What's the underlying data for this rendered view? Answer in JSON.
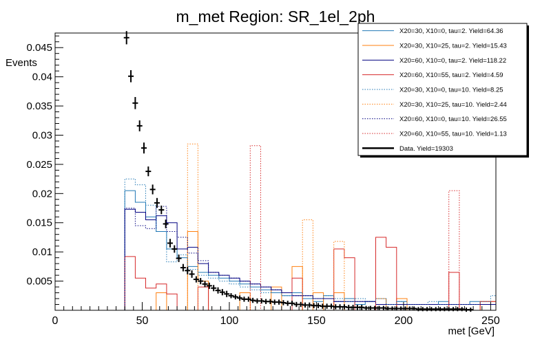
{
  "chart_data": {
    "type": "histogram",
    "title": "m_met Region: SR_1el_2ph",
    "xlabel": "met [GeV]",
    "ylabel": "Events",
    "xlim": [
      0,
      253
    ],
    "ylim": [
      0,
      0.0475
    ],
    "x_ticks": [
      0,
      50,
      100,
      150,
      200,
      250
    ],
    "y_ticks": [
      0.005,
      0.01,
      0.015,
      0.02,
      0.025,
      0.03,
      0.035,
      0.04,
      0.045
    ],
    "y_tick_labels": [
      "0.005",
      "0.01",
      "0.015",
      "0.02",
      "0.025",
      "0.03",
      "0.035",
      "0.04",
      "0.045"
    ],
    "bin_edges": [
      40,
      46,
      52,
      58,
      64,
      70,
      76,
      82,
      88,
      94,
      100,
      106,
      112,
      118,
      124,
      130,
      136,
      142,
      148,
      154,
      160,
      166,
      172,
      178,
      184,
      190,
      196,
      202,
      208,
      214,
      220,
      226,
      232,
      238,
      244,
      250,
      253
    ],
    "legend_position": "top-right",
    "series": [
      {
        "name": "X20=30, X10=0, tau=2. Yield=64.36",
        "color": "#1f77b4",
        "style": "solid",
        "values": [
          0.0205,
          0.0185,
          0.016,
          0.0135,
          0.0105,
          0.009,
          0.0075,
          0.0065,
          0.006,
          0.0055,
          0.005,
          0.0045,
          0.004,
          0.0035,
          0.003,
          0.0025,
          0.003,
          0.002,
          0.0015,
          0.0025,
          0.0015,
          0.002,
          0.001,
          0.0015,
          0.002,
          0.001,
          0.0015,
          0.001,
          0.001,
          0.001,
          0.0015,
          0.001,
          0.001,
          0.0015,
          0.001,
          0.001
        ]
      },
      {
        "name": "X20=30, X10=25, tau=2. Yield=15.43",
        "color": "#ff7f0e",
        "style": "solid",
        "values": [
          0.0,
          0.0,
          0.0,
          0.003,
          0.0,
          0.0,
          0.0135,
          0.005,
          0.0,
          0.0,
          0.0,
          0.003,
          0.0,
          0.0,
          0.004,
          0.0,
          0.0075,
          0.0,
          0.003,
          0.0,
          0.003,
          0.0,
          0.0,
          0.0,
          0.002,
          0.0,
          0.002,
          0.0,
          0.0,
          0.0,
          0.0,
          0.0,
          0.0,
          0.0,
          0.0015,
          0.0015
        ]
      },
      {
        "name": "X20=60, X10=0, tau=2. Yield=118.22",
        "color": "#000080",
        "style": "solid",
        "values": [
          0.0173,
          0.0168,
          0.0155,
          0.0162,
          0.015,
          0.0105,
          0.0108,
          0.008,
          0.0065,
          0.006,
          0.0055,
          0.005,
          0.0045,
          0.004,
          0.0035,
          0.003,
          0.0025,
          0.0025,
          0.002,
          0.002,
          0.0015,
          0.0015,
          0.0015,
          0.0015,
          0.001,
          0.001,
          0.001,
          0.001,
          0.001,
          0.001,
          0.001,
          0.001,
          0.001,
          0.001,
          0.001,
          0.001
        ]
      },
      {
        "name": "X20=60, X10=55, tau=2. Yield=4.59",
        "color": "#d62728",
        "style": "solid",
        "values": [
          0.0092,
          0.0055,
          0.0038,
          0.0045,
          0.0028,
          0.0,
          0.0,
          0.004,
          0.0,
          0.0,
          0.0,
          0.0,
          0.0,
          0.0,
          0.0,
          0.0,
          0.0055,
          0.0,
          0.0,
          0.0,
          0.0105,
          0.009,
          0.0,
          0.0,
          0.0125,
          0.0108,
          0.0,
          0.0,
          0.0,
          0.0,
          0.0,
          0.0065,
          0.0,
          0.0,
          0.0015,
          0.0015
        ]
      },
      {
        "name": "X20=30, X10=0, tau=10. Yield=8.25",
        "color": "#1f77b4",
        "style": "dotted",
        "values": [
          0.0225,
          0.0215,
          0.018,
          0.0135,
          0.0083,
          0.0095,
          0.007,
          0.006,
          0.0055,
          0.005,
          0.0045,
          0.004,
          0.0035,
          0.003,
          0.003,
          0.0025,
          0.003,
          0.0025,
          0.002,
          0.0025,
          0.002,
          0.0015,
          0.002,
          0.0015,
          0.002,
          0.001,
          0.0015,
          0.001,
          0.001,
          0.0015,
          0.001,
          0.001,
          0.001,
          0.001,
          0.0015,
          0.0025
        ]
      },
      {
        "name": "X20=30, X10=25, tau=10. Yield=2.44",
        "color": "#ff7f0e",
        "style": "dotted",
        "values": [
          0.0,
          0.0,
          0.0,
          0.0,
          0.0,
          0.0,
          0.0285,
          0.0,
          0.0,
          0.0,
          0.0,
          0.0,
          0.0,
          0.0,
          0.0,
          0.0,
          0.0,
          0.0155,
          0.0,
          0.0,
          0.0118,
          0.0,
          0.0,
          0.0,
          0.0,
          0.0,
          0.0,
          0.0,
          0.0,
          0.0,
          0.0,
          0.0,
          0.0,
          0.0,
          0.0,
          0.0
        ]
      },
      {
        "name": "X20=60, X10=0, tau=10. Yield=26.55",
        "color": "#000080",
        "style": "dotted",
        "values": [
          0.0175,
          0.0145,
          0.014,
          0.0178,
          0.0135,
          0.0125,
          0.0098,
          0.0085,
          0.0065,
          0.006,
          0.0055,
          0.005,
          0.0045,
          0.004,
          0.0035,
          0.003,
          0.0025,
          0.0025,
          0.002,
          0.002,
          0.0015,
          0.0015,
          0.0015,
          0.0015,
          0.001,
          0.001,
          0.001,
          0.001,
          0.001,
          0.001,
          0.001,
          0.001,
          0.001,
          0.001,
          0.001,
          0.001
        ]
      },
      {
        "name": "X20=60, X10=55, tau=10. Yield=1.13",
        "color": "#d62728",
        "style": "dotted",
        "values": [
          0.0,
          0.0,
          0.0,
          0.0,
          0.0,
          0.0,
          0.0,
          0.0,
          0.0,
          0.0,
          0.0,
          0.0,
          0.0282,
          0.0,
          0.0,
          0.0,
          0.0,
          0.0,
          0.0,
          0.0,
          0.0,
          0.0,
          0.0,
          0.0,
          0.0,
          0.0,
          0.0,
          0.0,
          0.0,
          0.0,
          0.0,
          0.0205,
          0.0,
          0.0,
          0.0,
          0.0
        ]
      }
    ],
    "data": {
      "name": "Data. Yield=19303",
      "color": "#000000",
      "x": [
        41,
        43.5,
        46,
        48.5,
        51,
        53.5,
        56,
        58.5,
        61,
        63.5,
        66,
        68.5,
        71,
        73.5,
        76,
        78.5,
        81,
        83.5,
        86,
        88.5,
        91,
        93.5,
        96,
        98.5,
        101,
        103.5,
        106,
        108.5,
        111,
        113.5,
        116,
        118.5,
        121,
        123.5,
        126,
        128.5,
        131,
        133.5,
        136,
        138.5,
        141,
        143.5,
        146,
        148.5,
        151,
        153.5,
        156,
        158.5,
        161,
        163.5,
        166,
        168.5,
        171,
        173.5,
        176,
        178.5,
        181,
        183.5,
        186,
        188.5,
        191,
        193.5,
        196,
        198.5,
        201,
        203.5,
        206,
        208.5,
        211,
        213.5,
        216,
        218.5,
        221,
        223.5,
        226,
        228.5,
        231,
        233.5,
        236,
        238.5
      ],
      "y": [
        0.0467,
        0.0401,
        0.0355,
        0.0316,
        0.0278,
        0.0238,
        0.0207,
        0.0184,
        0.0172,
        0.0148,
        0.0115,
        0.0105,
        0.0089,
        0.0073,
        0.0068,
        0.0062,
        0.0053,
        0.005,
        0.0045,
        0.0042,
        0.0038,
        0.0034,
        0.0031,
        0.0028,
        0.0025,
        0.0023,
        0.0021,
        0.0019,
        0.0019,
        0.0017,
        0.0016,
        0.0016,
        0.0015,
        0.0015,
        0.0014,
        0.0014,
        0.0013,
        0.0012,
        0.0012,
        0.001,
        0.001,
        0.0009,
        0.0009,
        0.0008,
        0.0008,
        0.0007,
        0.0007,
        0.0007,
        0.0006,
        0.0006,
        0.0006,
        0.0005,
        0.0005,
        0.0005,
        0.0005,
        0.0004,
        0.0004,
        0.0004,
        0.0004,
        0.0004,
        0.0003,
        0.0003,
        0.0003,
        0.0003,
        0.0003,
        0.0003,
        0.0003,
        0.0002,
        0.0002,
        0.0002,
        0.0002,
        0.0002,
        0.0002,
        0.0002,
        0.0002,
        0.0002,
        0.0002,
        0.0002,
        0.0001,
        0.0001
      ],
      "yerr": [
        0.0009,
        0.0008,
        0.0008,
        0.0007,
        0.0007,
        0.0006,
        0.0006,
        0.0006,
        0.0005,
        0.0005,
        0.0005,
        0.0004,
        0.0004,
        0.0004,
        0.0004,
        0.0004,
        0.0003,
        0.0003,
        0.0003,
        0.0003,
        0.0003,
        0.0003,
        0.0003,
        0.0003,
        0.0002,
        0.0002,
        0.0002,
        0.0002,
        0.0002,
        0.0002,
        0.0002,
        0.0002,
        0.0002,
        0.0002,
        0.0002,
        0.0002,
        0.0002,
        0.0002,
        0.0002,
        0.0002,
        0.0002,
        0.0002,
        0.0002,
        0.0002,
        0.0002,
        0.0002,
        0.0002,
        0.0002,
        0.0002,
        0.0002,
        0.0002,
        0.0002,
        0.0002,
        0.0002,
        0.0002,
        0.0001,
        0.0001,
        0.0001,
        0.0001,
        0.0001,
        0.0001,
        0.0001,
        0.0001,
        0.0001,
        0.0001,
        0.0001,
        0.0001,
        0.0001,
        0.0001,
        0.0001,
        0.0001,
        0.0001,
        0.0001,
        0.0001,
        0.0001,
        0.0001,
        0.0001,
        0.0001,
        0.0001,
        0.0001
      ]
    }
  }
}
